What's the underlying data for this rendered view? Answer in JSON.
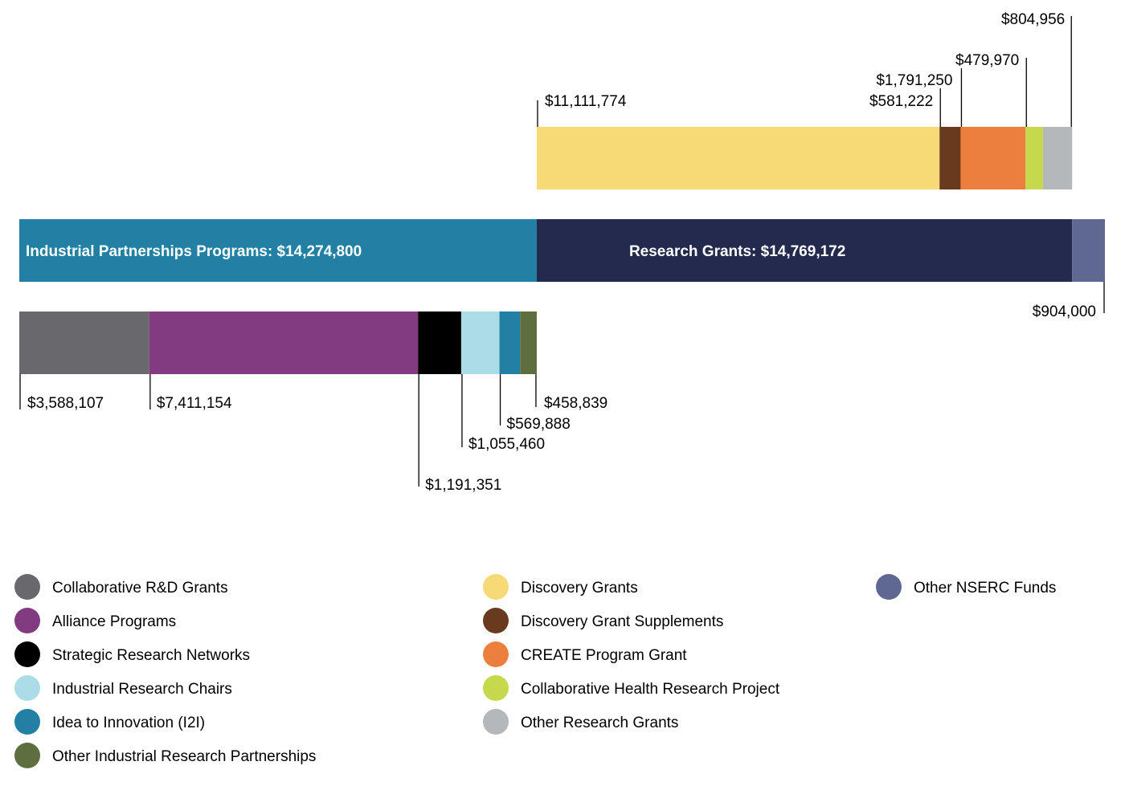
{
  "chart_data": {
    "type": "bar",
    "orientation": "horizontal-stacked",
    "total_bar": {
      "segments": [
        {
          "name": "Industrial Partnerships Programs",
          "value": 14274800,
          "label": "Industrial Partnerships Programs: $14,274,800",
          "color": "#2180a3"
        },
        {
          "name": "Research Grants",
          "value": 14769172,
          "label": "Research Grants: $14,769,172",
          "color": "#232a4e"
        },
        {
          "name": "Other NSERC Funds",
          "value": 904000,
          "label": "$904,000",
          "color": "#5f6890"
        }
      ]
    },
    "research_grants_breakdown": {
      "segments": [
        {
          "name": "Discovery Grants",
          "value": 11111774,
          "label": "$11,111,774",
          "color": "#f5da76"
        },
        {
          "name": "Discovery Grant Supplements",
          "value": 581222,
          "label": "$581,222",
          "color": "#693a1e"
        },
        {
          "name": "CREATE Program Grant",
          "value": 1791250,
          "label": "$1,791,250",
          "color": "#ec7f3e"
        },
        {
          "name": "Collaborative Health Research Project",
          "value": 479970,
          "label": "$479,970",
          "color": "#c6d84b"
        },
        {
          "name": "Other Research Grants",
          "value": 804956,
          "label": "$804,956",
          "color": "#b5b8bb"
        }
      ]
    },
    "industrial_breakdown": {
      "segments": [
        {
          "name": "Collaborative R&D Grants",
          "value": 3588107,
          "label": "$3,588,107",
          "color": "#69686c"
        },
        {
          "name": "Alliance Programs",
          "value": 7411154,
          "label": "$7,411,154",
          "color": "#823a80"
        },
        {
          "name": "Strategic Research Networks",
          "value": 1191351,
          "label": "$1,191,351",
          "color": "#000000"
        },
        {
          "name": "Industrial Research Chairs",
          "value": 1055460,
          "label": "$1,055,460",
          "color": "#acdde7"
        },
        {
          "name": "Idea to Innovation (I2I)",
          "value": 569888,
          "label": "$569,888",
          "color": "#2180a3"
        },
        {
          "name": "Other Industrial Research Partnerships",
          "value": 458839,
          "label": "$458,839",
          "color": "#5e6e3f"
        }
      ]
    },
    "legend": {
      "columns": [
        [
          {
            "label": "Collaborative R&D Grants",
            "color": "#69686c"
          },
          {
            "label": "Alliance Programs",
            "color": "#823a80"
          },
          {
            "label": "Strategic Research Networks",
            "color": "#000000"
          },
          {
            "label": "Industrial Research Chairs",
            "color": "#acdde7"
          },
          {
            "label": "Idea to Innovation (I2I)",
            "color": "#2180a3"
          },
          {
            "label": "Other Industrial Research Partnerships",
            "color": "#5e6e3f"
          }
        ],
        [
          {
            "label": "Discovery Grants",
            "color": "#f5da76"
          },
          {
            "label": "Discovery Grant Supplements",
            "color": "#693a1e"
          },
          {
            "label": "CREATE Program Grant",
            "color": "#ec7f3e"
          },
          {
            "label": "Collaborative Health Research Project",
            "color": "#c6d84b"
          },
          {
            "label": "Other Research Grants",
            "color": "#b5b8bb"
          }
        ],
        [
          {
            "label": "Other NSERC Funds",
            "color": "#5f6890"
          }
        ]
      ]
    }
  }
}
